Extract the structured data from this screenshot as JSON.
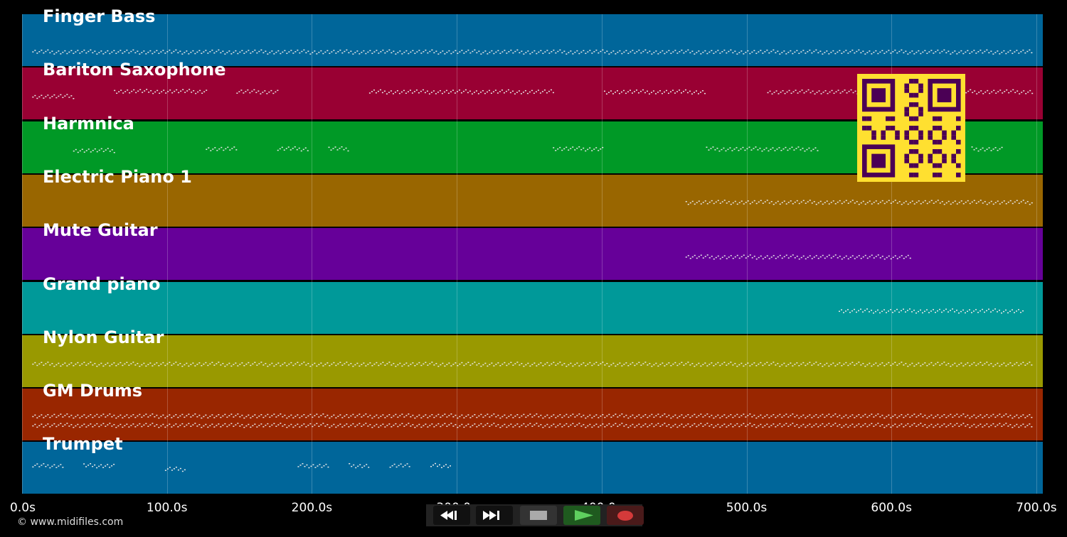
{
  "tracks": [
    {
      "name": "Finger Bass",
      "color": "#00669a"
    },
    {
      "name": "Bariton Saxophone",
      "color": "#990033"
    },
    {
      "name": "Harmnica",
      "color": "#009926"
    },
    {
      "name": "Electric Piano 1",
      "color": "#996600"
    },
    {
      "name": "Mute Guitar",
      "color": "#660099"
    },
    {
      "name": "Grand piano",
      "color": "#009999"
    },
    {
      "name": "Nylon Guitar",
      "color": "#999900"
    },
    {
      "name": "GM Drums",
      "color": "#992600"
    },
    {
      "name": "Trumpet",
      "color": "#00669a"
    }
  ],
  "timeline": {
    "ticks": [
      "0.0s",
      "100.0s",
      "200.0s",
      "300.0s",
      "400.0s",
      "500.0s",
      "600.0s",
      "700.0s"
    ]
  },
  "copyright": "© www.midifiles.com",
  "controls": {
    "rewind_icon": "rewind-icon",
    "fast_forward_icon": "fast-forward-icon",
    "stop_icon": "stop-icon",
    "play_icon": "play-icon",
    "record_icon": "record-icon"
  },
  "qr_code": {
    "color_fg": "#4b0055",
    "color_bg": "#ffe030"
  }
}
